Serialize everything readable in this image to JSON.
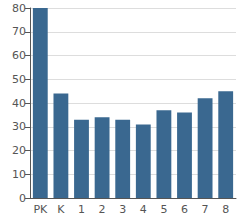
{
  "chart_data": {
    "type": "bar",
    "categories": [
      "PK",
      "K",
      "1",
      "2",
      "3",
      "4",
      "5",
      "6",
      "7",
      "8"
    ],
    "values": [
      80,
      44,
      33,
      34,
      33,
      31,
      37,
      36,
      42,
      45
    ],
    "color": "#3a6890",
    "ylim": [
      0,
      80
    ],
    "yticks": [
      0,
      10,
      20,
      30,
      40,
      50,
      60,
      70,
      80
    ],
    "grid": true
  }
}
